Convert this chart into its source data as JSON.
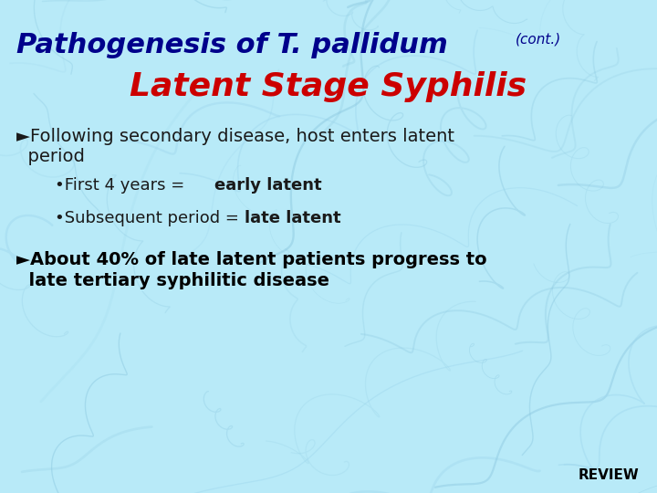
{
  "bg_color": "#b8eaf8",
  "title_line1": "Pathogenesis of T. pallidum",
  "title_cont": "(cont.)",
  "title_line2": "Latent Stage Syphilis",
  "title_line1_color": "#00008B",
  "title_cont_color": "#00008B",
  "title_line2_color": "#cc0000",
  "bullet1_line1": "►Following secondary disease, host enters latent",
  "bullet1_line2": "  period",
  "bullet1_color": "#1a1a1a",
  "sub1_normal": "•First 4 years = ",
  "sub1_bold": "early latent",
  "sub2_normal": "•Subsequent period = ",
  "sub2_bold": "late latent",
  "sub_color": "#1a1a1a",
  "bullet2_line1": "►About 40% of late latent patients progress to",
  "bullet2_line2": "  late tertiary syphilitic disease",
  "bullet2_color": "#000000",
  "review_text": "REVIEW",
  "review_color": "#000000",
  "vein_color": "#8cc8e0",
  "vein_color2": "#a0d8ee"
}
